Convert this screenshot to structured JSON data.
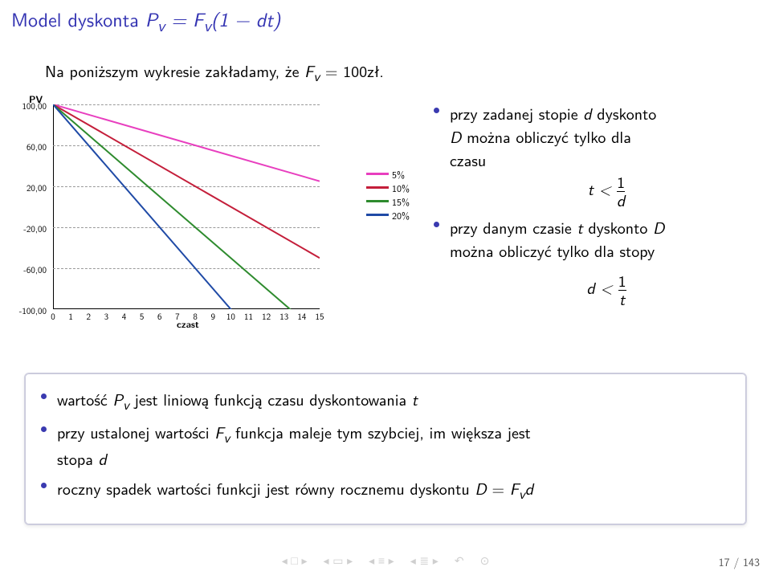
{
  "title": {
    "prefix": "Model dyskonta ",
    "eq_lhs_PvEq": "P",
    "eq_sub_v1": "v",
    "eq_mid": " = F",
    "eq_sub_v2": "v",
    "eq_rhs": "(1 − dt)"
  },
  "subtitle": {
    "t1": "Na poniższym wykresie zakładamy, że ",
    "F": "F",
    "sub_v": "v",
    "t2": " = 100zł."
  },
  "chart": {
    "type": "line",
    "y_label": "PV",
    "x_label": "czast",
    "background_color": "#ffffff",
    "grid_color": "#999999",
    "axis_color": "#000000",
    "x_ticks": [
      0,
      1,
      2,
      3,
      4,
      5,
      6,
      7,
      8,
      9,
      10,
      11,
      12,
      13,
      14,
      15
    ],
    "y_ticks": [
      {
        "v": 100,
        "label": "100,00"
      },
      {
        "v": 60,
        "label": "60,00"
      },
      {
        "v": 20,
        "label": "20,00"
      },
      {
        "v": -20,
        "label": "-20,00"
      },
      {
        "v": -60,
        "label": "-60,00"
      },
      {
        "v": -100,
        "label": "-100,00"
      }
    ],
    "xlim": [
      0,
      15
    ],
    "ylim": [
      -100,
      100
    ],
    "line_width": 2,
    "series": [
      {
        "name": "5%",
        "color": "#e83fbf",
        "d": 0.05
      },
      {
        "name": "10%",
        "color": "#c41e3a",
        "d": 0.1
      },
      {
        "name": "15%",
        "color": "#2e8b2e",
        "d": 0.15
      },
      {
        "name": "20%",
        "color": "#1f4aa6",
        "d": 0.2
      }
    ]
  },
  "right": {
    "b1_l1": "przy zadanej stopie ",
    "b1_d": "d",
    "b1_l2": " dyskonto",
    "b1_l3_D": "D",
    "b1_l3": " można obliczyć tylko dla",
    "b1_l4": "czasu",
    "b1_frac_lhs": "t < ",
    "b1_frac_num": "1",
    "b1_frac_den": "d",
    "b2_l1": "przy danym czasie ",
    "b2_t": "t",
    "b2_l2": " dyskonto ",
    "b2_D": "D",
    "b2_l3": "można obliczyć tylko dla stopy",
    "b2_frac_lhs": "d < ",
    "b2_frac_num": "1",
    "b2_frac_den": "t"
  },
  "lower": {
    "i1_a": "wartość ",
    "i1_P": "P",
    "i1_v": "v",
    "i1_b": " jest liniową funkcją czasu dyskontowania ",
    "i1_t": "t",
    "i2_a": "przy ustalonej wartości ",
    "i2_F": "F",
    "i2_v": "v",
    "i2_b": " funkcja maleje tym szybciej, im większa jest",
    "i2_c": "stopa ",
    "i2_d": "d",
    "i3_a": "roczny spadek wartości funkcji jest równy rocznemu dyskontu ",
    "i3_D": "D",
    "i3_eq": " = ",
    "i3_F": "F",
    "i3_v": "v",
    "i3_d": "d"
  },
  "footer": {
    "page": "17 / 143"
  },
  "colors": {
    "title": "#3333b2",
    "bullet": "#3a3ab0",
    "text": "#000000"
  }
}
